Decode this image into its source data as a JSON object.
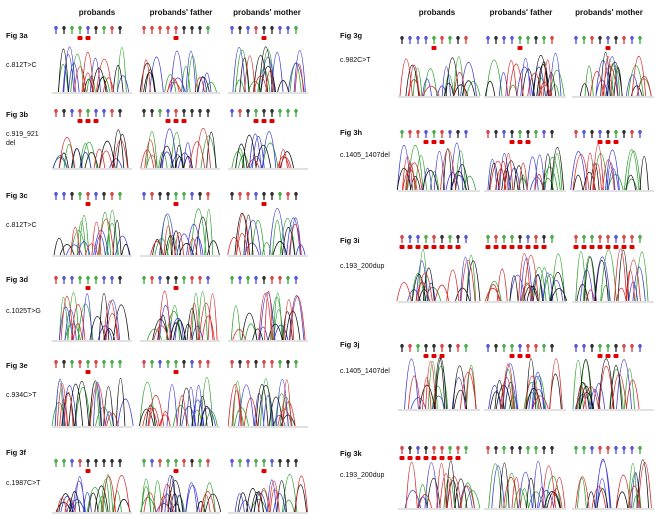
{
  "left": {
    "headers": [
      "probands",
      "probands' father",
      "probands' mother"
    ],
    "panels": [
      {
        "fig": "Fig 3a",
        "mutation": "c.812T>C"
      },
      {
        "fig": "Fig 3b",
        "mutation": "c.919_921 del"
      },
      {
        "fig": "Fig 3c",
        "mutation": "c.812T>C"
      },
      {
        "fig": "Fig 3d",
        "mutation": "c.1025T>G"
      },
      {
        "fig": "Fig 3e",
        "mutation": "c.934C>T"
      },
      {
        "fig": "Fig 3f",
        "mutation": "c.1987C>T"
      }
    ]
  },
  "right": {
    "headers": [
      "probands",
      "probands' father",
      "probands' mother"
    ],
    "panels": [
      {
        "fig": "Fig 3g",
        "mutation": "c.982C>T"
      },
      {
        "fig": "Fig 3h",
        "mutation": "c.1405_1407del"
      },
      {
        "fig": "Fig 3i",
        "mutation": "c.193_200dup"
      },
      {
        "fig": "Fig 3j",
        "mutation": "c.1405_1407del"
      },
      {
        "fig": "Fig 3k",
        "mutation": "c.193_200dup"
      }
    ]
  },
  "colors": {
    "A": "#2ca02c",
    "C": "#3b3bd6",
    "G": "#111111",
    "T": "#d62728",
    "marker": "#e00000"
  }
}
